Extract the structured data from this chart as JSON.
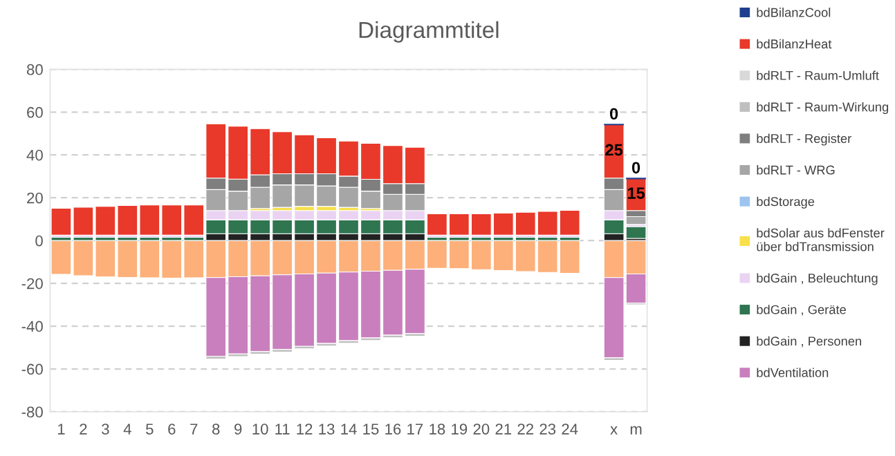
{
  "chart_data": {
    "type": "bar",
    "stacked": true,
    "title": "Diagrammtitel",
    "categories": [
      "1",
      "2",
      "3",
      "4",
      "5",
      "6",
      "7",
      "8",
      "9",
      "10",
      "11",
      "12",
      "13",
      "14",
      "15",
      "16",
      "17",
      "18",
      "19",
      "20",
      "21",
      "22",
      "23",
      "24",
      null,
      "x",
      "m"
    ],
    "ylim": [
      -80,
      80
    ],
    "yticks": [
      -80,
      -60,
      -40,
      -20,
      0,
      20,
      40,
      60,
      80
    ],
    "grid": "y",
    "legend": "right",
    "series": [
      {
        "color": "#fdb07a",
        "values": [
          -15.8,
          -16.4,
          -17.0,
          -17.2,
          -17.4,
          -17.6,
          -17.4,
          -17.3,
          -16.9,
          -16.5,
          -16.0,
          -15.6,
          -15.2,
          -14.7,
          -14.3,
          -13.9,
          -13.4,
          -13.0,
          -13.1,
          -13.6,
          -14.0,
          -14.5,
          -14.9,
          -15.3,
          null,
          -17.3,
          -15.6
        ]
      },
      {
        "name": "bdVentilation",
        "color": "#c97fbd",
        "values": [
          null,
          null,
          null,
          null,
          null,
          null,
          null,
          -36.8,
          -36.1,
          -35.4,
          -34.9,
          -33.8,
          -32.9,
          -32.1,
          -31.2,
          -30.3,
          -30.1,
          null,
          null,
          null,
          null,
          null,
          null,
          null,
          null,
          -37.5,
          -13.6
        ]
      },
      {
        "name": "bdGain , Personen",
        "color": "#222222",
        "values": [
          null,
          null,
          null,
          null,
          null,
          null,
          null,
          3.2,
          3.2,
          3.2,
          3.2,
          3.2,
          3.2,
          3.2,
          3.2,
          3.2,
          3.2,
          null,
          null,
          null,
          null,
          null,
          null,
          null,
          null,
          3.2,
          1.0
        ]
      },
      {
        "name": "bdGain , Geräte",
        "color": "#2e7550",
        "values": [
          1.5,
          1.5,
          1.5,
          1.5,
          1.5,
          1.5,
          1.5,
          6.5,
          6.5,
          6.5,
          6.5,
          6.5,
          6.5,
          6.5,
          6.5,
          6.5,
          6.5,
          1.5,
          1.5,
          1.5,
          1.5,
          1.5,
          1.5,
          1.5,
          null,
          6.5,
          5.5
        ]
      },
      {
        "name": "bdGain , Beleuchtung",
        "color": "#ead3f2",
        "values": [
          1.0,
          1.0,
          1.0,
          1.0,
          1.0,
          1.0,
          1.0,
          4.3,
          4.3,
          4.3,
          4.3,
          4.3,
          4.3,
          4.3,
          4.3,
          4.3,
          4.3,
          1.0,
          1.0,
          1.0,
          1.0,
          1.0,
          1.0,
          1.0,
          null,
          4.3,
          1.0
        ]
      },
      {
        "name": "bdSolar aus bdFenster\nüber bdTransmission",
        "color": "#f7e04a",
        "values": [
          null,
          null,
          null,
          null,
          null,
          null,
          null,
          null,
          null,
          1.0,
          1.5,
          2.0,
          2.0,
          1.5,
          1.0,
          null,
          null,
          null,
          null,
          null,
          null,
          null,
          null,
          null,
          null,
          null,
          null
        ]
      },
      {
        "name": "bdStorage",
        "color": "#9cc4ef",
        "values": [
          null,
          null,
          null,
          null,
          null,
          null,
          null,
          null,
          null,
          null,
          null,
          null,
          null,
          null,
          null,
          null,
          null,
          null,
          null,
          null,
          null,
          null,
          null,
          null,
          null,
          null,
          null
        ]
      },
      {
        "name": "bdRLT - WRG",
        "color": "#a6a6a6",
        "values": [
          null,
          null,
          null,
          null,
          null,
          null,
          null,
          9.8,
          9.1,
          9.9,
          10.5,
          10.0,
          9.5,
          9.4,
          8.1,
          7.6,
          7.6,
          null,
          null,
          null,
          null,
          null,
          null,
          null,
          null,
          9.8,
          3.7
        ]
      },
      {
        "name": "bdRLT - Register",
        "color": "#7f7f7f",
        "values": [
          null,
          null,
          null,
          null,
          null,
          null,
          null,
          5.4,
          5.6,
          5.8,
          5.2,
          5.2,
          5.7,
          5.2,
          5.5,
          5.0,
          5.0,
          null,
          null,
          null,
          null,
          null,
          null,
          null,
          null,
          5.4,
          2.8
        ]
      },
      {
        "name": "bdRLT - Raum-Wirkung",
        "color": "#bfbfbf",
        "values": [
          null,
          null,
          null,
          null,
          null,
          null,
          null,
          -1.2,
          -1.2,
          -1.2,
          -1.2,
          -1.2,
          -1.2,
          -1.2,
          -1.2,
          -1.2,
          -1.2,
          null,
          null,
          null,
          null,
          null,
          null,
          null,
          null,
          -1.2,
          -0.8
        ]
      },
      {
        "name": "bdRLT - Raum-Umluft",
        "color": "#d9d9d9",
        "values": [
          null,
          null,
          null,
          null,
          null,
          null,
          null,
          null,
          null,
          null,
          null,
          null,
          null,
          null,
          null,
          null,
          null,
          null,
          null,
          null,
          null,
          null,
          null,
          null,
          null,
          null,
          null
        ]
      },
      {
        "name": "bdBilanzHeat",
        "color": "#e8392a",
        "values": [
          12.6,
          13.1,
          13.5,
          13.9,
          14.1,
          14.1,
          14.1,
          25.3,
          24.7,
          21.6,
          19.6,
          18.2,
          16.8,
          16.4,
          16.8,
          17.8,
          17.0,
          10.0,
          10.0,
          10.0,
          10.3,
          10.7,
          11.1,
          11.6,
          null,
          25.0,
          15.0
        ],
        "value_labels": [
          null,
          null,
          null,
          null,
          null,
          null,
          null,
          null,
          null,
          null,
          null,
          null,
          null,
          null,
          null,
          null,
          null,
          null,
          null,
          null,
          null,
          null,
          null,
          null,
          null,
          "25",
          "15"
        ]
      },
      {
        "name": "bdBilanzCool",
        "color": "#1f3e8f",
        "values": [
          null,
          null,
          null,
          null,
          null,
          null,
          null,
          null,
          null,
          null,
          null,
          null,
          null,
          null,
          null,
          null,
          null,
          null,
          null,
          null,
          null,
          null,
          null,
          null,
          null,
          0,
          0
        ],
        "value_labels": [
          null,
          null,
          null,
          null,
          null,
          null,
          null,
          null,
          null,
          null,
          null,
          null,
          null,
          null,
          null,
          null,
          null,
          null,
          null,
          null,
          null,
          null,
          null,
          null,
          null,
          "0",
          "0"
        ]
      }
    ]
  }
}
